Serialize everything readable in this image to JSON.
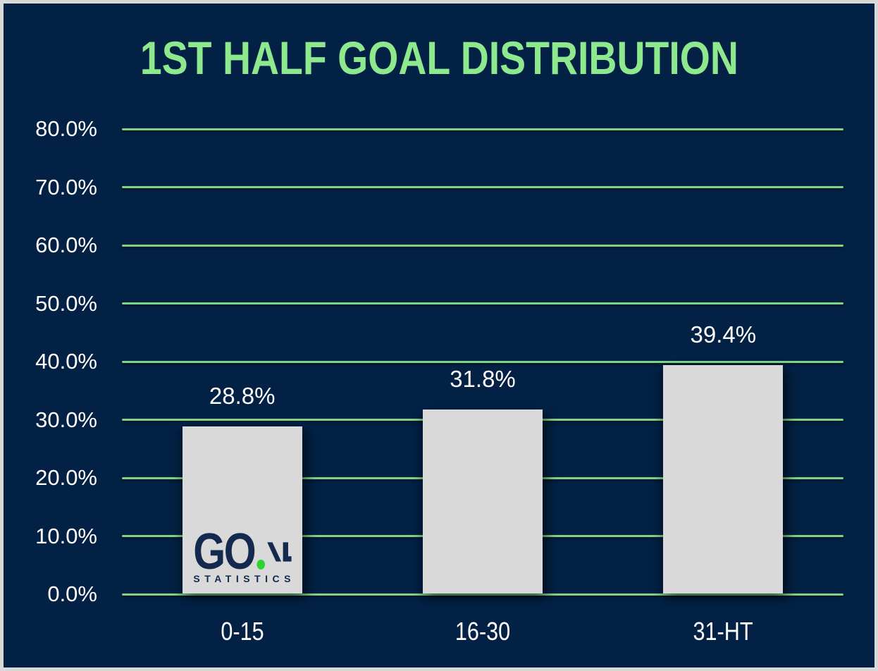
{
  "page": {
    "background": "#022144",
    "border_color": "#d9d9d9"
  },
  "chart_data": {
    "type": "bar",
    "title": "1ST HALF GOAL DISTRIBUTION",
    "categories": [
      "0-15",
      "16-30",
      "31-HT"
    ],
    "values": [
      28.8,
      31.8,
      39.4
    ],
    "value_labels": [
      "28.8%",
      "31.8%",
      "39.4%"
    ],
    "y_tick_labels": [
      "0.0%",
      "10.0%",
      "20.0%",
      "30.0%",
      "40.0%",
      "50.0%",
      "60.0%",
      "70.0%",
      "80.0%"
    ],
    "y_tick_values": [
      0,
      10,
      20,
      30,
      40,
      50,
      60,
      70,
      80
    ],
    "ylim": [
      0,
      80
    ],
    "xlabel": "",
    "ylabel": "",
    "grid": true,
    "legend": false,
    "colors": {
      "background": "#022144",
      "grid": "#7cd584",
      "title": "#8ee88e",
      "bar": "#d9d9d9",
      "label": "#ffffff"
    }
  },
  "watermark": {
    "main": "GO",
    "stylized_al": "AL",
    "sub": "STATISTICS",
    "navy": "#13294d",
    "green": "#2fd32f"
  }
}
